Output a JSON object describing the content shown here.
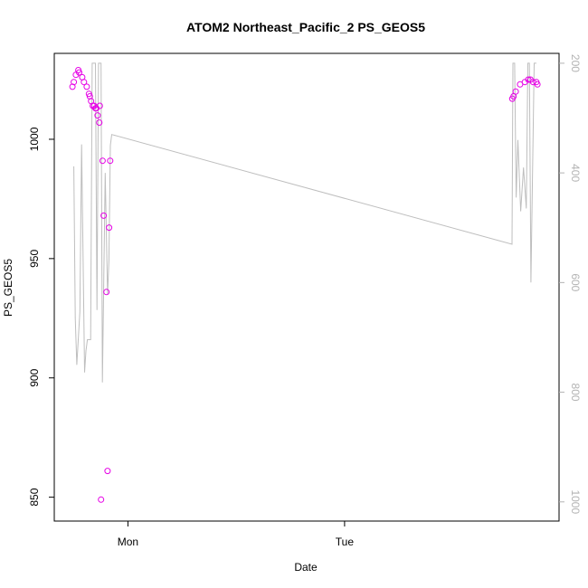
{
  "chart_data": {
    "type": "scatter",
    "title": "ATOM2 Northeast_Pacific_2 PS_GEOS5",
    "xlabel": "Date",
    "ylabel": "PS_GEOS5",
    "x_ticks": [
      "Mon",
      "Tue"
    ],
    "y_ticks": [
      850,
      900,
      950,
      1000
    ],
    "y2_ticks": [
      200,
      400,
      600,
      800,
      1000
    ],
    "grid": false,
    "legend": "none",
    "colors": {
      "points": "#e600e6",
      "line": "#bebebe",
      "right_axis": "#b3b3b3",
      "frame": "#000000"
    },
    "points": [
      {
        "x": -0.256,
        "y": 1022
      },
      {
        "x": -0.25,
        "y": 1024
      },
      {
        "x": -0.24,
        "y": 1027
      },
      {
        "x": -0.229,
        "y": 1029
      },
      {
        "x": -0.225,
        "y": 1028
      },
      {
        "x": -0.211,
        "y": 1026
      },
      {
        "x": -0.203,
        "y": 1024
      },
      {
        "x": -0.19,
        "y": 1022
      },
      {
        "x": -0.18,
        "y": 1019
      },
      {
        "x": -0.176,
        "y": 1018
      },
      {
        "x": -0.17,
        "y": 1016
      },
      {
        "x": -0.162,
        "y": 1014
      },
      {
        "x": -0.156,
        "y": 1014
      },
      {
        "x": -0.15,
        "y": 1013
      },
      {
        "x": -0.146,
        "y": 1013
      },
      {
        "x": -0.14,
        "y": 1010
      },
      {
        "x": -0.132,
        "y": 1007
      },
      {
        "x": -0.13,
        "y": 1014
      },
      {
        "x": -0.124,
        "y": 849
      },
      {
        "x": -0.117,
        "y": 991
      },
      {
        "x": -0.112,
        "y": 968
      },
      {
        "x": -0.099,
        "y": 936
      },
      {
        "x": -0.094,
        "y": 861
      },
      {
        "x": -0.087,
        "y": 963
      },
      {
        "x": -0.082,
        "y": 991
      },
      {
        "x": 1.774,
        "y": 1017
      },
      {
        "x": 1.78,
        "y": 1018
      },
      {
        "x": 1.79,
        "y": 1020
      },
      {
        "x": 1.81,
        "y": 1023
      },
      {
        "x": 1.832,
        "y": 1024
      },
      {
        "x": 1.848,
        "y": 1025
      },
      {
        "x": 1.858,
        "y": 1025
      },
      {
        "x": 1.87,
        "y": 1024
      },
      {
        "x": 1.885,
        "y": 1024
      },
      {
        "x": 1.89,
        "y": 1023
      }
    ],
    "line": [
      {
        "x": -0.25,
        "y2": 388
      },
      {
        "x": -0.243,
        "y2": 665
      },
      {
        "x": -0.236,
        "y2": 750
      },
      {
        "x": -0.222,
        "y2": 653
      },
      {
        "x": -0.214,
        "y2": 348
      },
      {
        "x": -0.2,
        "y2": 764
      },
      {
        "x": -0.194,
        "y2": 725
      },
      {
        "x": -0.187,
        "y": 916
      },
      {
        "x": -0.172,
        "y": 916
      },
      {
        "x": -0.165,
        "y2": 200
      },
      {
        "x": -0.15,
        "y2": 200
      },
      {
        "x": -0.143,
        "y2": 650
      },
      {
        "x": -0.136,
        "y2": 200
      },
      {
        "x": -0.124,
        "y2": 200
      },
      {
        "x": -0.118,
        "y2": 782
      },
      {
        "x": -0.105,
        "y2": 400
      },
      {
        "x": -0.094,
        "y2": 622
      },
      {
        "x": -0.088,
        "y2": 560
      },
      {
        "x": -0.081,
        "y2": 350
      },
      {
        "x": -0.075,
        "y": 1002
      },
      {
        "x": 1.773,
        "y": 956
      },
      {
        "x": 1.777,
        "y2": 200
      },
      {
        "x": 1.785,
        "y2": 200
      },
      {
        "x": 1.792,
        "y2": 445
      },
      {
        "x": 1.8,
        "y2": 340
      },
      {
        "x": 1.813,
        "y2": 470
      },
      {
        "x": 1.826,
        "y2": 390
      },
      {
        "x": 1.839,
        "y2": 465
      },
      {
        "x": 1.846,
        "y2": 200
      },
      {
        "x": 1.853,
        "y2": 200
      },
      {
        "x": 1.86,
        "y2": 600
      },
      {
        "x": 1.875,
        "y2": 200
      },
      {
        "x": 1.885,
        "y2": 200
      }
    ],
    "xlim": [
      -0.34,
      1.99
    ],
    "ylim": [
      840,
      1036
    ],
    "y2lim": [
      1035,
      182
    ]
  }
}
